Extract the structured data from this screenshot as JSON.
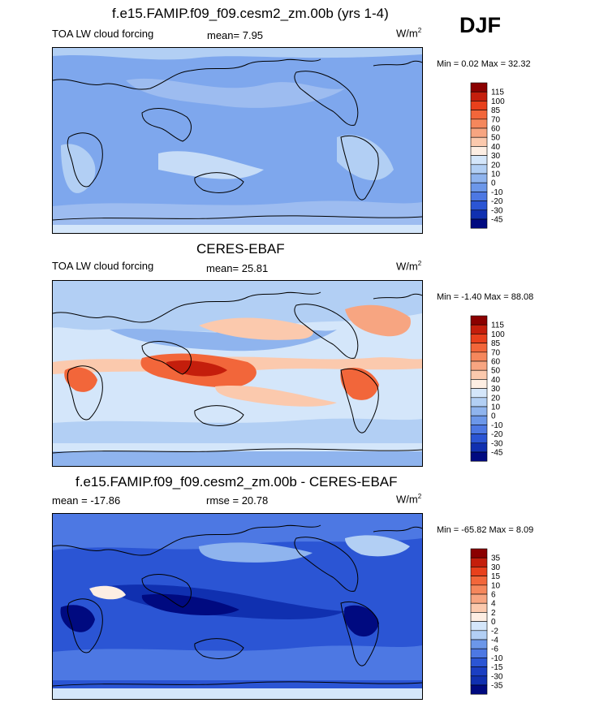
{
  "season": "DJF",
  "panels": [
    {
      "id": "model",
      "title": "f.e15.FAMIP.f09_f09.cesm2_zm.00b (yrs 1-4)",
      "left_label": "TOA LW cloud forcing",
      "center_label": "mean=  7.95",
      "units_base": "W/m",
      "units_exp": "2",
      "minmax": "Min =   0.02 Max =  32.32",
      "colorbar_levels": [
        "115",
        "100",
        "85",
        "70",
        "60",
        "50",
        "40",
        "30",
        "20",
        "10",
        "0",
        "-10",
        "-20",
        "-30",
        "-45"
      ],
      "colorbar_colors": [
        "#8b0000",
        "#c41e0c",
        "#e8401c",
        "#f2663a",
        "#f5875c",
        "#f7a581",
        "#fbc9ad",
        "#fdeee3",
        "#d4e6fa",
        "#b2cff4",
        "#8fb4ee",
        "#6c97e9",
        "#4d78e3",
        "#2b55d4",
        "#1030b0",
        "#000a80"
      ],
      "map_base": "#7ea7ed",
      "blobs": [
        {
          "color": "#b2cff4",
          "shape": "tropics-light"
        },
        {
          "color": "#cbe0f8",
          "shape": "maritime"
        },
        {
          "color": "#9dbcf0",
          "shape": "southern"
        }
      ]
    },
    {
      "id": "obs",
      "title": "CERES-EBAF",
      "left_label": "TOA LW cloud forcing",
      "center_label": "mean=  25.81",
      "units_base": "W/m",
      "units_exp": "2",
      "minmax": "Min =  -1.40 Max =  88.08",
      "colorbar_levels": [
        "115",
        "100",
        "85",
        "70",
        "60",
        "50",
        "40",
        "30",
        "20",
        "10",
        "0",
        "-10",
        "-20",
        "-30",
        "-45"
      ],
      "colorbar_colors": [
        "#8b0000",
        "#c41e0c",
        "#e8401c",
        "#f2663a",
        "#f5875c",
        "#f7a581",
        "#fbc9ad",
        "#fdeee3",
        "#d4e6fa",
        "#b2cff4",
        "#8fb4ee",
        "#6c97e9",
        "#4d78e3",
        "#2b55d4",
        "#1030b0",
        "#000a80"
      ],
      "map_base": "#d4e6fa"
    },
    {
      "id": "diff",
      "title": "f.e15.FAMIP.f09_f09.cesm2_zm.00b - CERES-EBAF",
      "left_label": "mean = -17.86",
      "center_label": "rmse =  20.78",
      "units_base": "W/m",
      "units_exp": "2",
      "minmax": "Min = -65.82 Max =   8.09",
      "colorbar_levels": [
        "35",
        "30",
        "15",
        "10",
        "6",
        "4",
        "2",
        "0",
        "-2",
        "-4",
        "-6",
        "-10",
        "-15",
        "-30",
        "-35"
      ],
      "colorbar_colors": [
        "#8b0000",
        "#c41e0c",
        "#e8401c",
        "#f2663a",
        "#f5875c",
        "#f7a581",
        "#fbc9ad",
        "#fdeee3",
        "#d4e6fa",
        "#b2cff4",
        "#6c97e9",
        "#4d78e3",
        "#2b55d4",
        "#1a3ec2",
        "#1030b0",
        "#000a80"
      ],
      "map_base": "#2b55d4"
    }
  ]
}
